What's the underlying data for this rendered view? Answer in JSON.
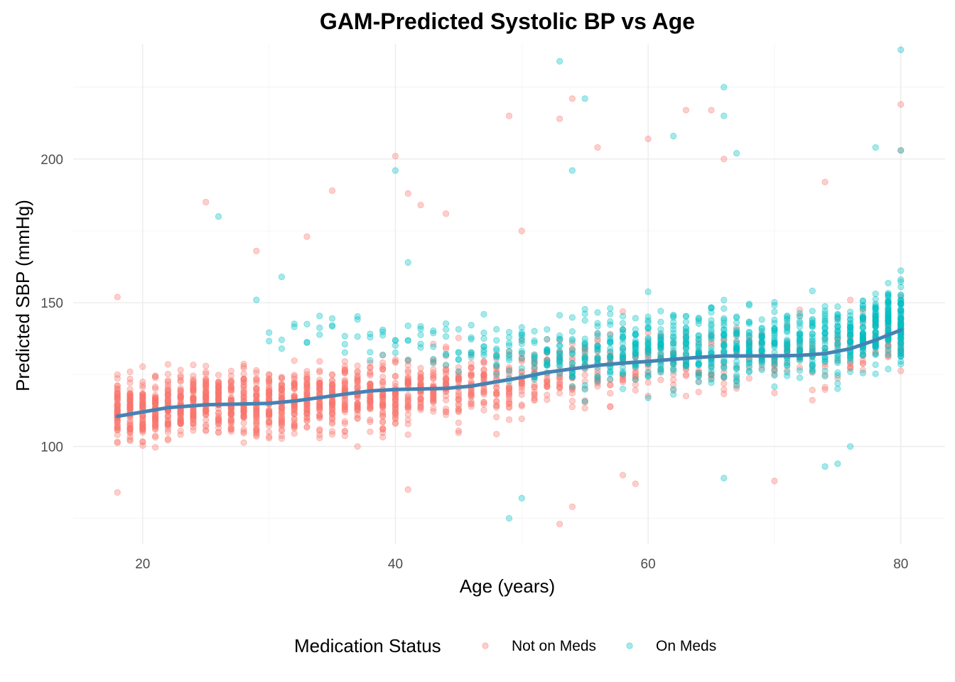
{
  "chart_data": {
    "type": "scatter",
    "title": "GAM-Predicted Systolic BP vs Age",
    "xlabel": "Age (years)",
    "ylabel": "Predicted SBP (mmHg)",
    "xlim": [
      14.5,
      83.5
    ],
    "ylim": [
      66,
      240
    ],
    "x_ticks": [
      20,
      40,
      60,
      80
    ],
    "y_ticks": [
      100,
      150,
      200
    ],
    "grid": true,
    "legend": {
      "title": "Medication Status",
      "position": "bottom",
      "entries": [
        {
          "label": "Not on Meds",
          "color": "#F8766D"
        },
        {
          "label": "On Meds",
          "color": "#00BFC4"
        }
      ]
    },
    "series": [
      {
        "name": "Not on Meds",
        "color": "#F8766D",
        "opacity": 0.35,
        "summary": [
          {
            "age": 18,
            "center": 112,
            "spread": 20,
            "count": 60
          },
          {
            "age": 20,
            "center": 113,
            "spread": 20,
            "count": 55
          },
          {
            "age": 25,
            "center": 115,
            "spread": 20,
            "count": 55
          },
          {
            "age": 30,
            "center": 115,
            "spread": 20,
            "count": 50
          },
          {
            "age": 35,
            "center": 117,
            "spread": 21,
            "count": 45
          },
          {
            "age": 40,
            "center": 119,
            "spread": 21,
            "count": 40
          },
          {
            "age": 45,
            "center": 120,
            "spread": 21,
            "count": 30
          },
          {
            "age": 50,
            "center": 123,
            "spread": 22,
            "count": 22
          },
          {
            "age": 55,
            "center": 127,
            "spread": 23,
            "count": 18
          },
          {
            "age": 60,
            "center": 129,
            "spread": 23,
            "count": 14
          },
          {
            "age": 65,
            "center": 131,
            "spread": 23,
            "count": 12
          },
          {
            "age": 70,
            "center": 131,
            "spread": 23,
            "count": 10
          },
          {
            "age": 75,
            "center": 133,
            "spread": 23,
            "count": 8
          },
          {
            "age": 80,
            "center": 140,
            "spread": 24,
            "count": 20
          }
        ],
        "notable_points": [
          {
            "x": 18,
            "y": 84
          },
          {
            "x": 18,
            "y": 152
          },
          {
            "x": 25,
            "y": 185
          },
          {
            "x": 29,
            "y": 168
          },
          {
            "x": 33,
            "y": 173
          },
          {
            "x": 35,
            "y": 189
          },
          {
            "x": 40,
            "y": 201
          },
          {
            "x": 41,
            "y": 85
          },
          {
            "x": 41,
            "y": 188
          },
          {
            "x": 42,
            "y": 184
          },
          {
            "x": 44,
            "y": 181
          },
          {
            "x": 49,
            "y": 215
          },
          {
            "x": 50,
            "y": 175
          },
          {
            "x": 53,
            "y": 73
          },
          {
            "x": 53,
            "y": 214
          },
          {
            "x": 54,
            "y": 79
          },
          {
            "x": 54,
            "y": 221
          },
          {
            "x": 56,
            "y": 204
          },
          {
            "x": 58,
            "y": 90
          },
          {
            "x": 59,
            "y": 87
          },
          {
            "x": 60,
            "y": 207
          },
          {
            "x": 63,
            "y": 217
          },
          {
            "x": 65,
            "y": 217
          },
          {
            "x": 66,
            "y": 200
          },
          {
            "x": 70,
            "y": 88
          },
          {
            "x": 80,
            "y": 219
          },
          {
            "x": 80,
            "y": 203
          },
          {
            "x": 74,
            "y": 192
          }
        ]
      },
      {
        "name": "On Meds",
        "color": "#00BFC4",
        "opacity": 0.35,
        "summary": [
          {
            "age": 30,
            "center": 140,
            "spread": 12,
            "count": 2
          },
          {
            "age": 35,
            "center": 140,
            "spread": 15,
            "count": 3
          },
          {
            "age": 40,
            "center": 138,
            "spread": 18,
            "count": 4
          },
          {
            "age": 45,
            "center": 135,
            "spread": 20,
            "count": 6
          },
          {
            "age": 50,
            "center": 132,
            "spread": 22,
            "count": 12
          },
          {
            "age": 55,
            "center": 132,
            "spread": 23,
            "count": 20
          },
          {
            "age": 60,
            "center": 134,
            "spread": 23,
            "count": 28
          },
          {
            "age": 65,
            "center": 135,
            "spread": 23,
            "count": 30
          },
          {
            "age": 70,
            "center": 136,
            "spread": 23,
            "count": 30
          },
          {
            "age": 75,
            "center": 137,
            "spread": 23,
            "count": 30
          },
          {
            "age": 80,
            "center": 145,
            "spread": 24,
            "count": 70
          }
        ],
        "notable_points": [
          {
            "x": 26,
            "y": 180
          },
          {
            "x": 29,
            "y": 151
          },
          {
            "x": 31,
            "y": 159
          },
          {
            "x": 40,
            "y": 196
          },
          {
            "x": 41,
            "y": 164
          },
          {
            "x": 49,
            "y": 75
          },
          {
            "x": 50,
            "y": 82
          },
          {
            "x": 53,
            "y": 234
          },
          {
            "x": 55,
            "y": 221
          },
          {
            "x": 54,
            "y": 196
          },
          {
            "x": 62,
            "y": 208
          },
          {
            "x": 66,
            "y": 225
          },
          {
            "x": 66,
            "y": 215
          },
          {
            "x": 67,
            "y": 202
          },
          {
            "x": 78,
            "y": 204
          },
          {
            "x": 80,
            "y": 238
          },
          {
            "x": 80,
            "y": 203
          },
          {
            "x": 74,
            "y": 93
          },
          {
            "x": 75,
            "y": 94
          },
          {
            "x": 76,
            "y": 100
          },
          {
            "x": 66,
            "y": 89
          }
        ]
      },
      {
        "name": "GAM fit",
        "color": "#4682B4",
        "type": "line",
        "x": [
          18,
          20,
          22,
          25,
          28,
          30,
          32,
          34,
          36,
          38,
          40,
          42,
          44,
          46,
          48,
          50,
          52,
          54,
          56,
          58,
          60,
          62,
          64,
          66,
          68,
          70,
          72,
          74,
          76,
          78,
          80
        ],
        "y": [
          110.5,
          112.0,
          113.5,
          114.5,
          114.8,
          115.0,
          115.8,
          117.0,
          118.2,
          119.3,
          119.8,
          120.0,
          120.2,
          121.0,
          122.5,
          124.0,
          125.8,
          127.0,
          128.2,
          129.0,
          129.6,
          130.3,
          131.0,
          131.5,
          131.5,
          131.5,
          131.7,
          132.3,
          134.0,
          137.0,
          140.5
        ]
      }
    ]
  }
}
